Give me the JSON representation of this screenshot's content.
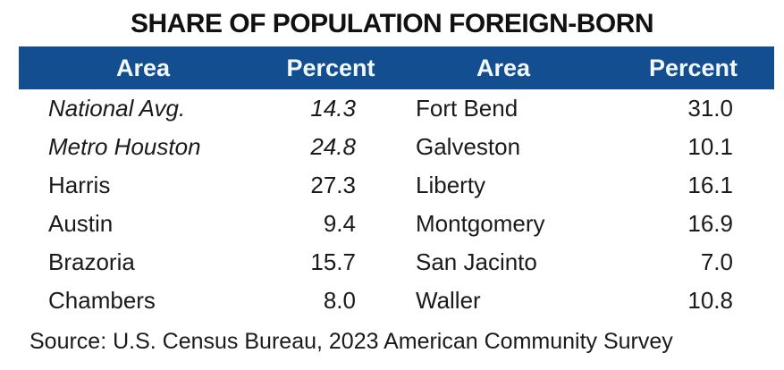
{
  "title": "SHARE OF POPULATION FOREIGN-BORN",
  "colors": {
    "header_bg": "#124E90",
    "header_text": "#F3F8FD",
    "body_text": "#1A1A1A",
    "background": "#FFFFFF"
  },
  "table": {
    "headers": {
      "area_left": "Area",
      "percent_left": "Percent",
      "area_right": "Area",
      "percent_right": "Percent"
    },
    "rows": [
      {
        "area1": "National Avg.",
        "pct1": "14.3",
        "area2": "Fort Bend",
        "pct2": "31.0"
      },
      {
        "area1": "Metro Houston",
        "pct1": "24.8",
        "area2": "Galveston",
        "pct2": "10.1"
      },
      {
        "area1": "Harris",
        "pct1": "27.3",
        "area2": "Liberty",
        "pct2": "16.1"
      },
      {
        "area1": "Austin",
        "pct1": "9.4",
        "area2": "Montgomery",
        "pct2": "16.9"
      },
      {
        "area1": "Brazoria",
        "pct1": "15.7",
        "area2": "San Jacinto",
        "pct2": "7.0"
      },
      {
        "area1": "Chambers",
        "pct1": "8.0",
        "area2": "Waller",
        "pct2": "10.8"
      }
    ]
  },
  "source": "Source: U.S. Census Bureau, 2023 American Community Survey",
  "chart_data": {
    "type": "table",
    "title": "SHARE OF POPULATION FOREIGN-BORN",
    "columns": [
      "Area",
      "Percent",
      "Area",
      "Percent"
    ],
    "rows": [
      [
        "National Avg.",
        14.3,
        "Fort Bend",
        31.0
      ],
      [
        "Metro Houston",
        24.8,
        "Galveston",
        10.1
      ],
      [
        "Harris",
        27.3,
        "Liberty",
        16.1
      ],
      [
        "Austin",
        9.4,
        "Montgomery",
        16.9
      ],
      [
        "Brazoria",
        15.7,
        "San Jacinto",
        7.0
      ],
      [
        "Chambers",
        8.0,
        "Waller",
        10.8
      ]
    ],
    "areas": [
      "National Avg.",
      "Metro Houston",
      "Harris",
      "Austin",
      "Brazoria",
      "Chambers",
      "Fort Bend",
      "Galveston",
      "Liberty",
      "Montgomery",
      "San Jacinto",
      "Waller"
    ],
    "values": [
      14.3,
      24.8,
      27.3,
      9.4,
      15.7,
      8.0,
      31.0,
      10.1,
      16.1,
      16.9,
      7.0,
      10.8
    ],
    "italic_rows": [
      "National Avg.",
      "Metro Houston"
    ],
    "source": "Source: U.S. Census Bureau, 2023 American Community Survey"
  }
}
